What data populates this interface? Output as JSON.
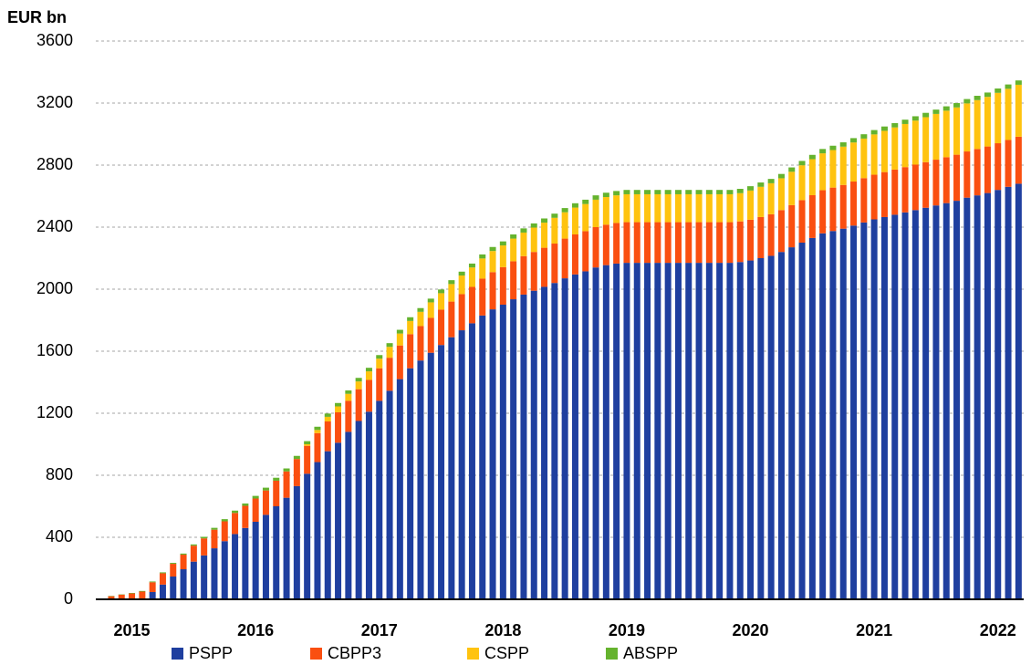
{
  "chart_data": {
    "type": "stacked_bar",
    "y_axis_label": "EUR bn",
    "categories": [
      null,
      null,
      null,
      "2015",
      null,
      null,
      null,
      null,
      null,
      null,
      null,
      null,
      null,
      null,
      null,
      "2016",
      null,
      null,
      null,
      null,
      null,
      null,
      null,
      null,
      null,
      null,
      null,
      "2017",
      null,
      null,
      null,
      null,
      null,
      null,
      null,
      null,
      null,
      null,
      null,
      "2018",
      null,
      null,
      null,
      null,
      null,
      null,
      null,
      null,
      null,
      null,
      null,
      "2019",
      null,
      null,
      null,
      null,
      null,
      null,
      null,
      null,
      null,
      null,
      null,
      "2020",
      null,
      null,
      null,
      null,
      null,
      null,
      null,
      null,
      null,
      null,
      null,
      "2021",
      null,
      null,
      null,
      null,
      null,
      null,
      null,
      null,
      null,
      null,
      null,
      "2022",
      null,
      null
    ],
    "series": [
      {
        "name": "PSPP",
        "color": "#1f3f9f",
        "values": [
          0,
          0,
          0,
          0,
          0,
          47,
          95,
          147,
          194,
          243,
          283,
          329,
          375,
          421,
          460,
          500,
          545,
          600,
          655,
          730,
          810,
          885,
          955,
          1010,
          1080,
          1150,
          1210,
          1280,
          1345,
          1420,
          1490,
          1540,
          1590,
          1640,
          1690,
          1735,
          1780,
          1830,
          1870,
          1900,
          1935,
          1965,
          1990,
          2015,
          2040,
          2070,
          2095,
          2115,
          2140,
          2155,
          2165,
          2170,
          2170,
          2170,
          2170,
          2170,
          2170,
          2170,
          2170,
          2170,
          2170,
          2170,
          2175,
          2185,
          2200,
          2215,
          2240,
          2270,
          2300,
          2330,
          2360,
          2375,
          2390,
          2410,
          2430,
          2450,
          2465,
          2480,
          2495,
          2510,
          2525,
          2540,
          2555,
          2570,
          2590,
          2605,
          2620,
          2640,
          2660,
          2680
        ]
      },
      {
        "name": "CBPP3",
        "color": "#fa4f10",
        "values": [
          5,
          20,
          30,
          38,
          50,
          63,
          73,
          82,
          94,
          103,
          110,
          120,
          128,
          136,
          143,
          150,
          157,
          165,
          170,
          175,
          180,
          187,
          192,
          196,
          200,
          205,
          205,
          210,
          213,
          217,
          220,
          222,
          225,
          228,
          230,
          233,
          235,
          238,
          240,
          242,
          245,
          248,
          250,
          252,
          254,
          256,
          258,
          259,
          260,
          261,
          262,
          262,
          262,
          262,
          262,
          262,
          262,
          262,
          262,
          262,
          262,
          262,
          262,
          263,
          265,
          268,
          270,
          272,
          274,
          276,
          278,
          280,
          282,
          284,
          286,
          288,
          290,
          291,
          292,
          293,
          294,
          295,
          296,
          297,
          298,
          299,
          300,
          301,
          302,
          303
        ]
      },
      {
        "name": "CSPP",
        "color": "#ffc30f",
        "values": [
          0,
          0,
          0,
          0,
          0,
          0,
          0,
          0,
          0,
          0,
          0,
          0,
          0,
          0,
          0,
          0,
          0,
          0,
          0,
          0,
          10,
          20,
          30,
          38,
          45,
          50,
          55,
          62,
          70,
          77,
          85,
          92,
          100,
          106,
          113,
          120,
          125,
          130,
          136,
          140,
          146,
          152,
          157,
          162,
          166,
          170,
          173,
          175,
          177,
          178,
          178,
          180,
          180,
          180,
          180,
          180,
          180,
          180,
          180,
          180,
          180,
          180,
          182,
          188,
          195,
          200,
          205,
          215,
          225,
          232,
          238,
          242,
          247,
          252,
          255,
          260,
          266,
          272,
          278,
          284,
          290,
          295,
          300,
          305,
          310,
          315,
          320,
          325,
          330,
          335
        ]
      },
      {
        "name": "ABSPP",
        "color": "#65b32e",
        "values": [
          0,
          2,
          2,
          3,
          4,
          5,
          6,
          6,
          7,
          8,
          10,
          12,
          14,
          15,
          15,
          17,
          18,
          19,
          19,
          20,
          20,
          21,
          21,
          22,
          22,
          23,
          23,
          23,
          24,
          24,
          24,
          24,
          24,
          24,
          25,
          25,
          25,
          26,
          26,
          26,
          27,
          27,
          27,
          27,
          27,
          27,
          28,
          28,
          28,
          28,
          28,
          28,
          28,
          28,
          28,
          28,
          28,
          28,
          28,
          28,
          28,
          28,
          28,
          28,
          28,
          28,
          28,
          28,
          28,
          28,
          28,
          28,
          28,
          28,
          28,
          28,
          28,
          28,
          28,
          28,
          28,
          28,
          28,
          28,
          28,
          28,
          28,
          28,
          28,
          28
        ]
      }
    ],
    "ylim": [
      0,
      3600
    ],
    "yticks": [
      0,
      400,
      800,
      1200,
      1600,
      2000,
      2400,
      2800,
      3200,
      3600
    ],
    "grid": true,
    "legend": "bottom"
  }
}
